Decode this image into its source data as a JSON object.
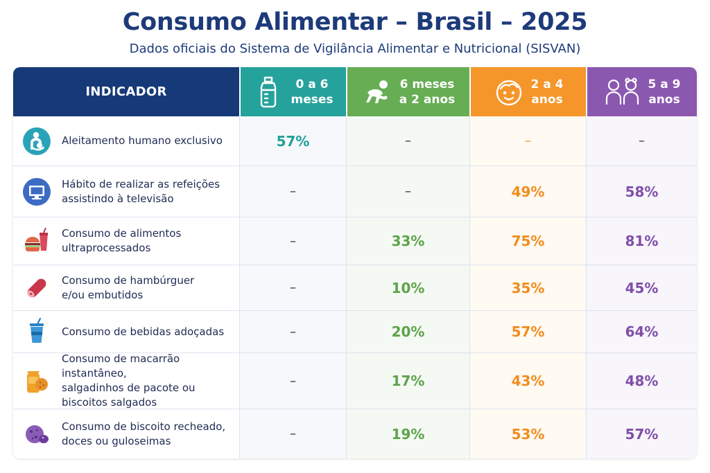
{
  "title": "Consumo Alimentar – Brasil – 2025",
  "subtitle": "Dados oficiais do Sistema de Vigilância Alimentar e Nutricional (SISVAN)",
  "header": {
    "indicator": "INDICADOR",
    "columns": [
      {
        "line1": "0 a 6",
        "line2": "meses",
        "icon": "baby-bottle-icon",
        "color": "#26a29c"
      },
      {
        "line1": "6 meses",
        "line2": "a 2 anos",
        "icon": "crawling-baby-icon",
        "color": "#66ad54"
      },
      {
        "line1": "2 a 4",
        "line2": "anos",
        "icon": "child-face-icon",
        "color": "#f5962a"
      },
      {
        "line1": "5 a 9",
        "line2": "anos",
        "icon": "two-children-icon",
        "color": "#8b58b0"
      }
    ]
  },
  "rows": [
    {
      "label1": "Aleitamento humano exclusivo",
      "label2": "",
      "icon": "breastfeeding-icon",
      "values": [
        "57%",
        "–",
        "–",
        "–"
      ]
    },
    {
      "label1": "Hábito de realizar as refeições",
      "label2": "assistindo à televisão",
      "icon": "television-icon",
      "values": [
        "–",
        "–",
        "49%",
        "58%"
      ]
    },
    {
      "label1": "Consumo de alimentos",
      "label2": "ultraprocessados",
      "icon": "burger-soda-icon",
      "values": [
        "–",
        "33%",
        "75%",
        "81%"
      ]
    },
    {
      "label1": "Consumo de hambúrguer",
      "label2": "e/ou embutidos",
      "icon": "sausage-icon",
      "values": [
        "–",
        "10%",
        "35%",
        "45%"
      ]
    },
    {
      "label1": "Consumo de bebidas adoçadas",
      "label2": "",
      "icon": "soft-drink-cup-icon",
      "values": [
        "–",
        "20%",
        "57%",
        "64%"
      ]
    },
    {
      "label1": "Consumo de macarrão instantâneo,",
      "label2": "salgadinhos de pacote ou",
      "label3": "biscoitos salgados",
      "icon": "snack-bag-icon",
      "values": [
        "–",
        "17%",
        "43%",
        "48%"
      ]
    },
    {
      "label1": "Consumo de biscoito recheado,",
      "label2": "doces ou guloseimas",
      "icon": "cookie-icon",
      "values": [
        "–",
        "19%",
        "53%",
        "57%"
      ]
    }
  ],
  "colors": {
    "navy": "#163a78",
    "teal": "#22a099",
    "green": "#5da34b",
    "orange": "#f28c1e",
    "purple": "#7f4fa8"
  }
}
